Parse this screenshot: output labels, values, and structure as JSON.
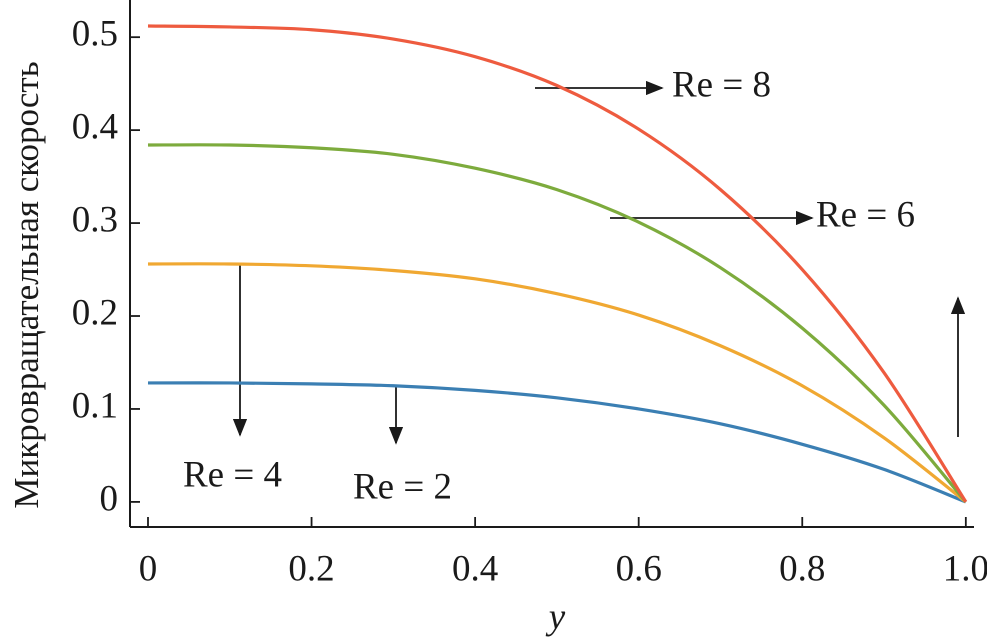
{
  "chart_data": {
    "type": "line",
    "x_label": "y",
    "y_label": "Микровращательная скорость",
    "x": [
      0,
      0.1,
      0.2,
      0.3,
      0.4,
      0.5,
      0.6,
      0.7,
      0.8,
      0.9,
      1.0
    ],
    "series": [
      {
        "name": "Re = 2",
        "color": "#3b7fb3",
        "values": [
          0.128,
          0.128,
          0.127,
          0.125,
          0.12,
          0.112,
          0.1,
          0.084,
          0.062,
          0.035,
          0
        ]
      },
      {
        "name": "Re = 4",
        "color": "#f0a832",
        "values": [
          0.256,
          0.256,
          0.254,
          0.249,
          0.24,
          0.224,
          0.201,
          0.168,
          0.125,
          0.069,
          0
        ]
      },
      {
        "name": "Re = 6",
        "color": "#7dab3d",
        "values": [
          0.384,
          0.384,
          0.381,
          0.374,
          0.359,
          0.336,
          0.301,
          0.252,
          0.187,
          0.104,
          0
        ]
      },
      {
        "name": "Re = 8",
        "color": "#ee5b3f",
        "values": [
          0.512,
          0.511,
          0.508,
          0.498,
          0.479,
          0.448,
          0.401,
          0.336,
          0.25,
          0.139,
          0
        ]
      }
    ],
    "xlim": [
      -0.022,
      1.01
    ],
    "ylim": [
      -0.027,
      0.54
    ],
    "xticks": [
      0,
      0.2,
      0.4,
      0.6,
      0.8,
      {
        "value": 1.0,
        "label": "1.0"
      }
    ],
    "yticks": [
      0,
      0.1,
      0.2,
      0.3,
      0.4,
      0.5
    ]
  }
}
